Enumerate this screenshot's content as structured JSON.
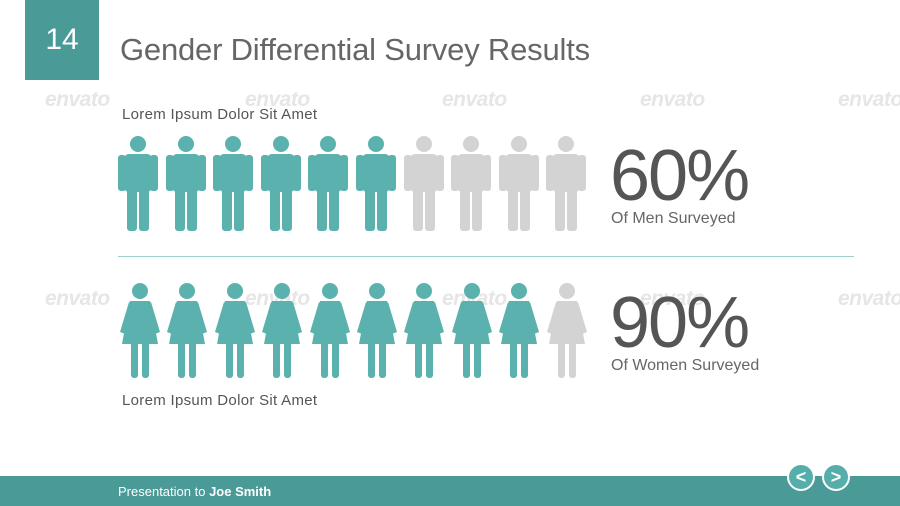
{
  "slide": {
    "number": "14",
    "title": "Gender Differential Survey Results"
  },
  "watermark_text": "envato",
  "men": {
    "caption": "Lorem Ipsum Dolor Sit Amet",
    "percent": "60%",
    "label": "Of Men Surveyed",
    "filled": 6,
    "total": 10
  },
  "women": {
    "caption": "Lorem Ipsum Dolor Sit Amet",
    "percent": "90%",
    "label": "Of Women Surveyed",
    "filled": 9,
    "total": 10
  },
  "footer": {
    "prefix": "Presentation to ",
    "name": "Joe Smith"
  },
  "nav": {
    "prev_label": "<",
    "next_label": ">"
  },
  "colors": {
    "accent": "#4a9a97",
    "figure_filled": "#5bb1ad",
    "figure_empty": "#d3d3d3"
  },
  "icons": {
    "men": "male-person-icon",
    "women": "female-person-icon"
  }
}
